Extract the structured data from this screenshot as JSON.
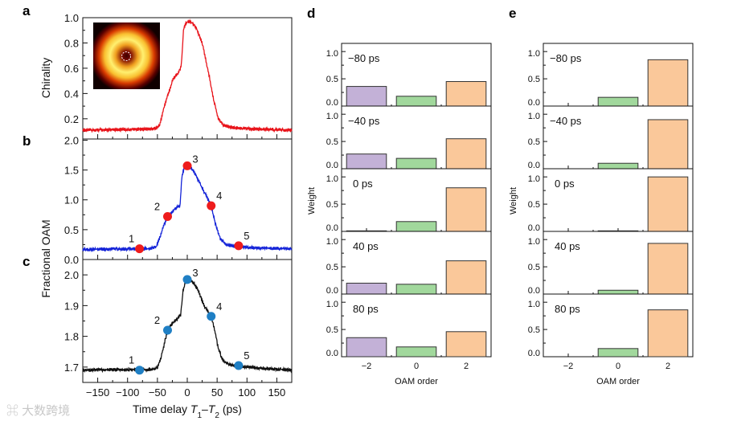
{
  "watermark": "大数跨境",
  "colors": {
    "a": "#e8141b",
    "b": "#1524d8",
    "c": "#111111",
    "markers_b": "#ee1c1c",
    "markers_c": "#1f7fc4",
    "purple": "#c3b1d7",
    "green": "#a1d89c",
    "orange": "#fac89a"
  },
  "chart_data": [
    {
      "type": "line",
      "panel": "a",
      "ylabel": "Chirality",
      "xlim": [
        -175,
        175
      ],
      "ylim": [
        0.04,
        1.0
      ],
      "yticks": [
        "0.2",
        "0.4",
        "0.6",
        "0.8",
        "1.0"
      ],
      "inset": "donut-shaped beam intensity image with dashed circle at center",
      "x": [
        -175,
        -60,
        -50,
        -45,
        -40,
        -35,
        -30,
        -25,
        -20,
        -15,
        -10,
        -6,
        -2,
        3,
        8,
        15,
        25,
        35,
        45,
        52,
        60,
        75,
        100,
        175
      ],
      "y": [
        0.11,
        0.12,
        0.13,
        0.17,
        0.27,
        0.35,
        0.42,
        0.5,
        0.54,
        0.56,
        0.62,
        0.92,
        0.96,
        0.97,
        0.96,
        0.92,
        0.8,
        0.58,
        0.33,
        0.2,
        0.15,
        0.13,
        0.12,
        0.11
      ]
    },
    {
      "type": "line",
      "panel": "b",
      "ylabel": "Fractional OAM",
      "xlim": [
        -175,
        175
      ],
      "ylim": [
        0,
        2.02
      ],
      "yticks": [
        "0.0",
        "0.5",
        "1.0",
        "1.5",
        "2.0"
      ],
      "x": [
        -175,
        -60,
        -52,
        -45,
        -40,
        -33,
        -25,
        -18,
        -12,
        -9,
        -5,
        0,
        8,
        15,
        25,
        33,
        40,
        47,
        55,
        65,
        80,
        100,
        175
      ],
      "y": [
        0.17,
        0.18,
        0.22,
        0.4,
        0.55,
        0.72,
        0.8,
        0.88,
        0.9,
        1.4,
        1.55,
        1.57,
        1.52,
        1.4,
        1.2,
        1.05,
        0.9,
        0.6,
        0.35,
        0.25,
        0.22,
        0.2,
        0.18
      ],
      "points": [
        {
          "label": "1",
          "x": -80,
          "y": 0.18
        },
        {
          "label": "2",
          "x": -33,
          "y": 0.72
        },
        {
          "label": "3",
          "x": 0,
          "y": 1.57
        },
        {
          "label": "4",
          "x": 40,
          "y": 0.9
        },
        {
          "label": "5",
          "x": 86,
          "y": 0.23
        }
      ]
    },
    {
      "type": "line",
      "panel": "c",
      "xlabel_parts": [
        "Time delay ",
        "T",
        "1",
        "–",
        "T",
        "2",
        " (ps)"
      ],
      "xlim": [
        -175,
        175
      ],
      "ylim": [
        1.65,
        2.05
      ],
      "xticks": [
        "−150",
        "−100",
        "−50",
        "0",
        "50",
        "100",
        "150"
      ],
      "yticks": [
        "1.7",
        "1.8",
        "1.9",
        "2.0"
      ],
      "x": [
        -175,
        -58,
        -50,
        -44,
        -38,
        -33,
        -26,
        -18,
        -11,
        -7,
        -3,
        3,
        10,
        18,
        28,
        35,
        40,
        46,
        52,
        60,
        75,
        100,
        175
      ],
      "y": [
        1.69,
        1.692,
        1.7,
        1.73,
        1.78,
        1.82,
        1.84,
        1.855,
        1.87,
        1.95,
        1.975,
        1.985,
        1.975,
        1.95,
        1.9,
        1.88,
        1.865,
        1.82,
        1.76,
        1.72,
        1.705,
        1.7,
        1.69
      ],
      "points": [
        {
          "label": "1",
          "x": -80,
          "y": 1.69
        },
        {
          "label": "2",
          "x": -33,
          "y": 1.82
        },
        {
          "label": "3",
          "x": 0,
          "y": 1.985
        },
        {
          "label": "4",
          "x": 40,
          "y": 1.865
        },
        {
          "label": "5",
          "x": 86,
          "y": 1.705
        }
      ]
    },
    {
      "type": "bar",
      "panel": "d",
      "ylabel": "Weight",
      "xlabel": "OAM order",
      "categories": [
        "−2",
        "0",
        "2"
      ],
      "ylim": [
        0,
        1.15
      ],
      "yticks": [
        "0.0",
        "0.5",
        "1.0"
      ],
      "rows": [
        {
          "label": "−80 ps",
          "values": [
            0.36,
            0.18,
            0.45
          ]
        },
        {
          "label": "−40 ps",
          "values": [
            0.27,
            0.19,
            0.55
          ]
        },
        {
          "label": "0 ps",
          "values": [
            0.01,
            0.18,
            0.8
          ]
        },
        {
          "label": "40 ps",
          "values": [
            0.2,
            0.18,
            0.61
          ]
        },
        {
          "label": "80 ps",
          "values": [
            0.35,
            0.18,
            0.46
          ]
        }
      ]
    },
    {
      "type": "bar",
      "panel": "e",
      "ylabel": "Weight",
      "xlabel": "OAM order",
      "categories": [
        "−2",
        "0",
        "2"
      ],
      "ylim": [
        0,
        1.15
      ],
      "yticks": [
        "0.0",
        "0.5",
        "1.0"
      ],
      "rows": [
        {
          "label": "−80 ps",
          "values": [
            0,
            0.16,
            0.85
          ]
        },
        {
          "label": "−40 ps",
          "values": [
            0,
            0.1,
            0.9
          ]
        },
        {
          "label": "0 ps",
          "values": [
            0,
            0.01,
            1.0
          ]
        },
        {
          "label": "40 ps",
          "values": [
            0,
            0.07,
            0.93
          ]
        },
        {
          "label": "80 ps",
          "values": [
            0,
            0.15,
            0.86
          ]
        }
      ]
    }
  ]
}
